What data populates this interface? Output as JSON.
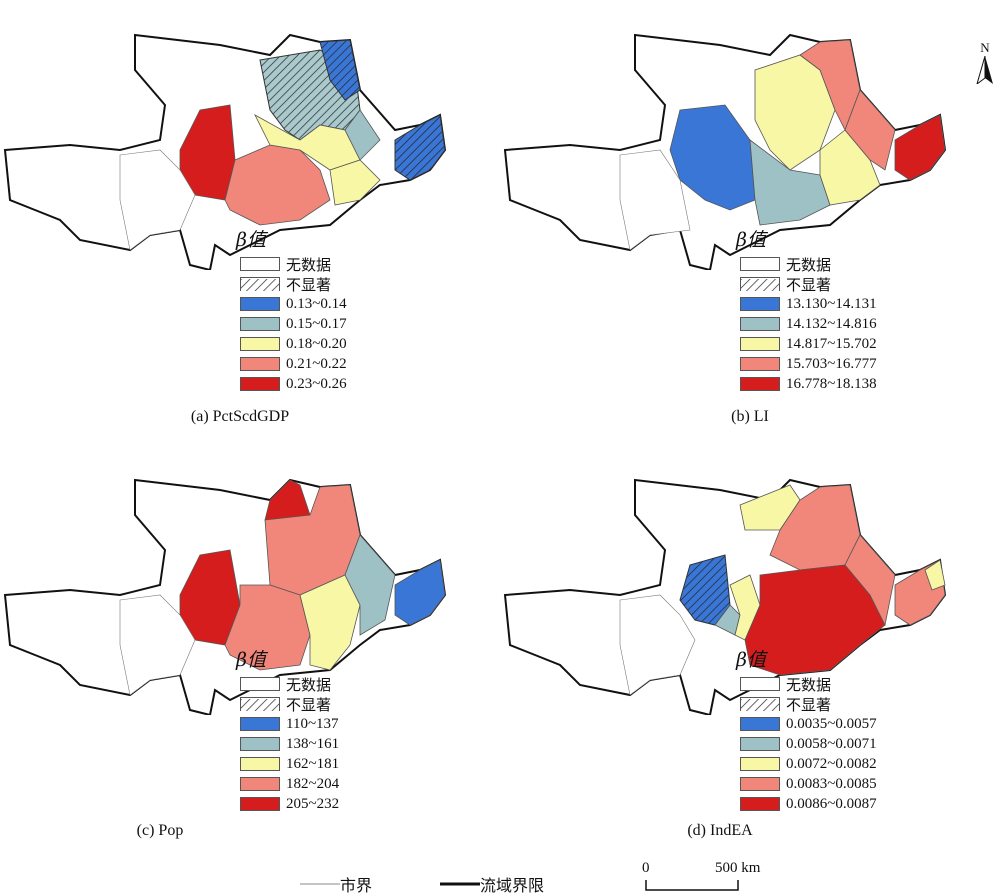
{
  "colors": {
    "blue": "#3a76d6",
    "teal": "#9ec1c6",
    "yellow": "#f7f7a6",
    "salmon": "#f0877a",
    "red": "#d61d1d",
    "nodata": "#ffffff"
  },
  "legend_title": "β值",
  "legend_common": [
    "无数据",
    "不显著"
  ],
  "panels": [
    {
      "caption": "(a) PctScdGDP",
      "classes": [
        "0.13~0.14",
        "0.15~0.17",
        "0.18~0.20",
        "0.21~0.22",
        "0.23~0.26"
      ]
    },
    {
      "caption": "(b) LI",
      "classes": [
        "13.130~14.131",
        "14.132~14.816",
        "14.817~15.702",
        "15.703~16.777",
        "16.778~18.138"
      ]
    },
    {
      "caption": "(c) Pop",
      "classes": [
        "110~137",
        "138~161",
        "162~181",
        "182~204",
        "205~232"
      ]
    },
    {
      "caption": "(d) IndEA",
      "classes": [
        "0.0035~0.0057",
        "0.0058~0.0071",
        "0.0072~0.0082",
        "0.0083~0.0085",
        "0.0086~0.0087"
      ]
    }
  ],
  "bottom_legend": {
    "city_boundary": "市界",
    "basin_boundary": "流域界限"
  },
  "scale_bar": {
    "start": "0",
    "end": "500 km"
  },
  "north": "N"
}
